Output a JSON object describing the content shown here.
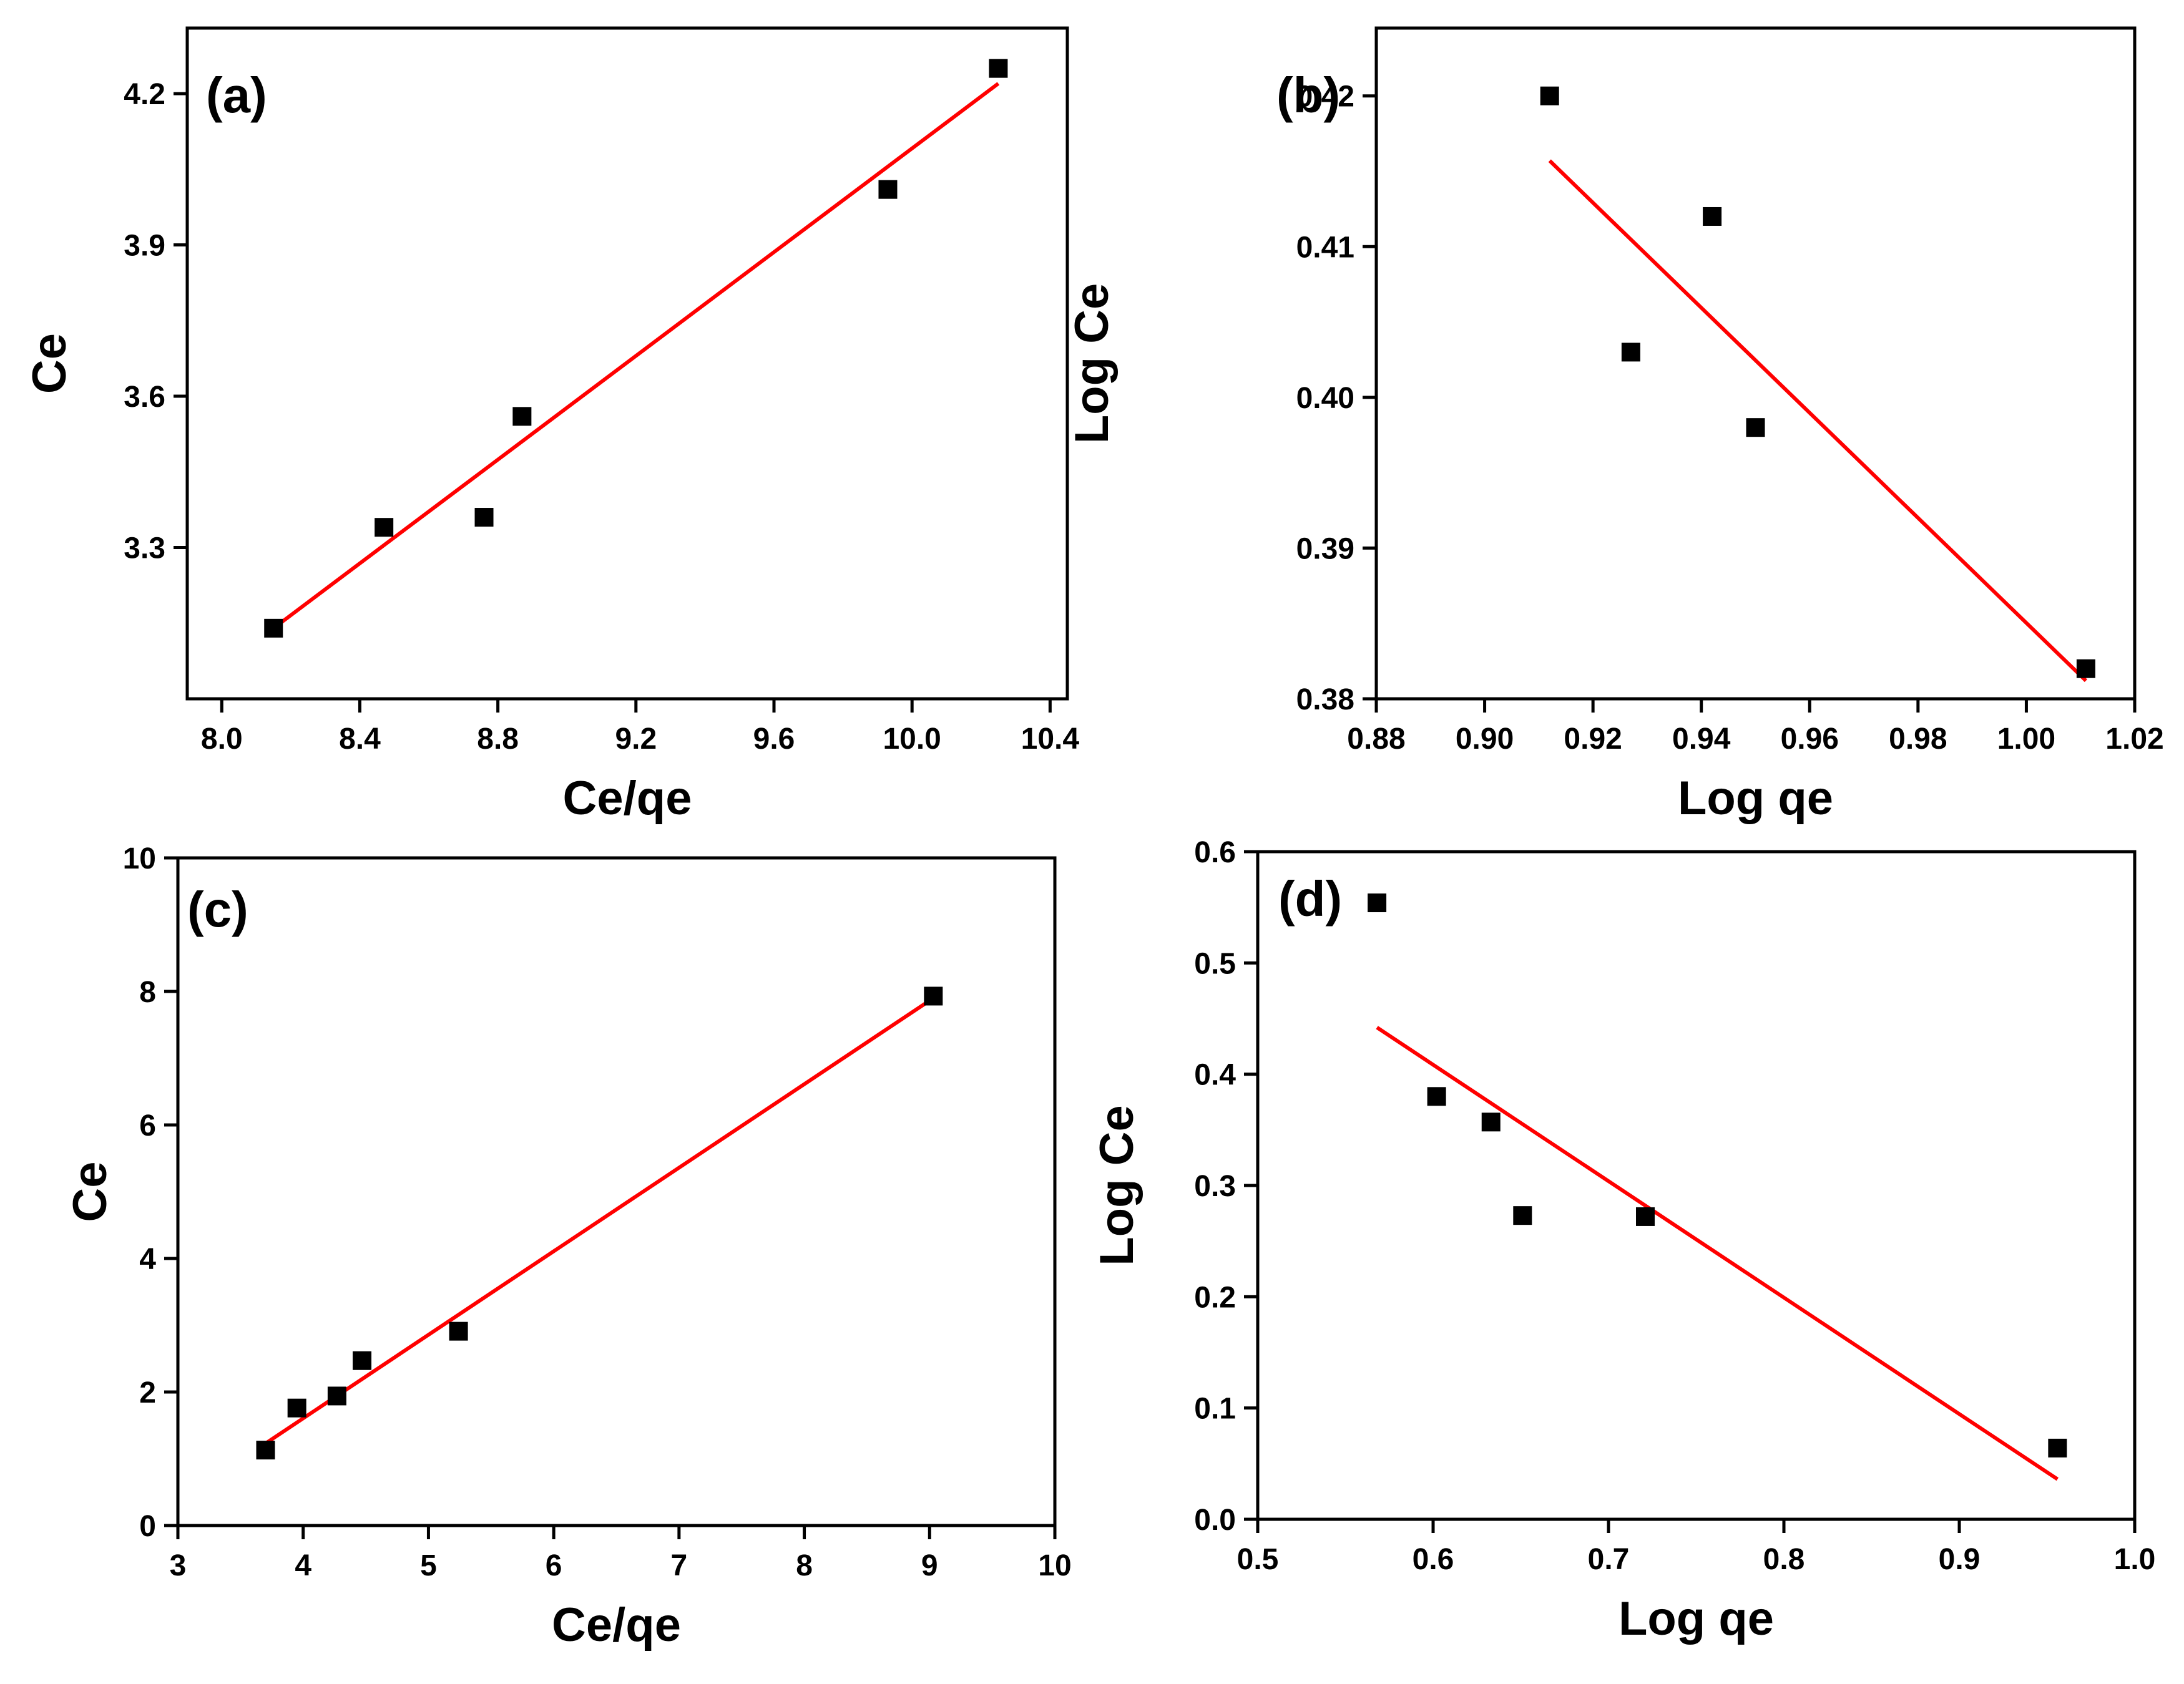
{
  "chart_data": [
    {
      "type": "scatter",
      "panel_label": "(a)",
      "xlabel": "Ce/qe",
      "ylabel": "Ce",
      "xlim": [
        7.9,
        10.45
      ],
      "ylim": [
        3.0,
        4.33
      ],
      "x_ticks": [
        8.0,
        8.4,
        8.8,
        9.2,
        9.6,
        10.0,
        10.4
      ],
      "x_tick_labels": [
        "8.0",
        "8.4",
        "8.8",
        "9.2",
        "9.6",
        "10.0",
        "10.4"
      ],
      "y_ticks": [
        3.3,
        3.6,
        3.9,
        4.2
      ],
      "y_tick_labels": [
        "3.3",
        "3.6",
        "3.9",
        "4.2"
      ],
      "series": [
        {
          "name": "data",
          "x": [
            8.15,
            8.47,
            8.76,
            8.87,
            9.93,
            10.25
          ],
          "y": [
            3.14,
            3.34,
            3.36,
            3.56,
            4.01,
            4.25
          ]
        }
      ],
      "fit_line": {
        "x": [
          8.15,
          10.25
        ],
        "y": [
          3.14,
          4.22
        ]
      },
      "marker_color": "#000000",
      "line_color": "#ff0000"
    },
    {
      "type": "scatter",
      "panel_label": "(b)",
      "xlabel": "Log qe",
      "ylabel": "Log Ce",
      "xlim": [
        0.88,
        1.02
      ],
      "ylim": [
        0.38,
        0.4245
      ],
      "x_ticks": [
        0.88,
        0.9,
        0.92,
        0.94,
        0.96,
        0.98,
        1.0,
        1.02
      ],
      "x_tick_labels": [
        "0.88",
        "0.90",
        "0.92",
        "0.94",
        "0.96",
        "0.98",
        "1.00",
        "1.02"
      ],
      "y_ticks": [
        0.38,
        0.39,
        0.4,
        0.41,
        0.42
      ],
      "y_tick_labels": [
        "0.38",
        "0.39",
        "0.40",
        "0.41",
        "0.42"
      ],
      "series": [
        {
          "name": "data",
          "x": [
            0.912,
            0.927,
            0.942,
            0.95,
            1.011
          ],
          "y": [
            0.42,
            0.403,
            0.412,
            0.398,
            0.382
          ]
        }
      ],
      "fit_line": {
        "x": [
          0.912,
          1.011
        ],
        "y": [
          0.4157,
          0.3812
        ]
      },
      "marker_color": "#000000",
      "line_color": "#ff0000"
    },
    {
      "type": "scatter",
      "panel_label": "(c)",
      "xlabel": "Ce/qe",
      "ylabel": "Ce",
      "xlim": [
        3,
        10
      ],
      "ylim": [
        0,
        10
      ],
      "x_ticks": [
        3,
        4,
        5,
        6,
        7,
        8,
        9,
        10
      ],
      "x_tick_labels": [
        "3",
        "4",
        "5",
        "6",
        "7",
        "8",
        "9",
        "10"
      ],
      "y_ticks": [
        0,
        2,
        4,
        6,
        8,
        10
      ],
      "y_tick_labels": [
        "0",
        "2",
        "4",
        "6",
        "8",
        "10"
      ],
      "series": [
        {
          "name": "data",
          "x": [
            3.7,
            3.95,
            4.27,
            4.47,
            5.24,
            9.03
          ],
          "y": [
            1.13,
            1.76,
            1.94,
            2.47,
            2.91,
            7.93
          ]
        }
      ],
      "fit_line": {
        "x": [
          3.7,
          9.03
        ],
        "y": [
          1.23,
          7.9
        ]
      },
      "marker_color": "#000000",
      "line_color": "#ff0000"
    },
    {
      "type": "scatter",
      "panel_label": "(d)",
      "xlabel": "Log qe",
      "ylabel": "Log Ce",
      "xlim": [
        0.5,
        1.0
      ],
      "ylim": [
        0.0,
        0.6
      ],
      "x_ticks": [
        0.5,
        0.6,
        0.7,
        0.8,
        0.9,
        1.0
      ],
      "x_tick_labels": [
        "0.5",
        "0.6",
        "0.7",
        "0.8",
        "0.9",
        "1.0"
      ],
      "y_ticks": [
        0.0,
        0.1,
        0.2,
        0.3,
        0.4,
        0.5,
        0.6
      ],
      "y_tick_labels": [
        "0.0",
        "0.1",
        "0.2",
        "0.3",
        "0.4",
        "0.5",
        "0.6"
      ],
      "series": [
        {
          "name": "data",
          "x": [
            0.568,
            0.602,
            0.633,
            0.651,
            0.721,
            0.956
          ],
          "y": [
            0.554,
            0.38,
            0.357,
            0.273,
            0.272,
            0.064
          ]
        }
      ],
      "fit_line": {
        "x": [
          0.568,
          0.956
        ],
        "y": [
          0.442,
          0.036
        ]
      },
      "marker_color": "#000000",
      "line_color": "#ff0000"
    }
  ]
}
